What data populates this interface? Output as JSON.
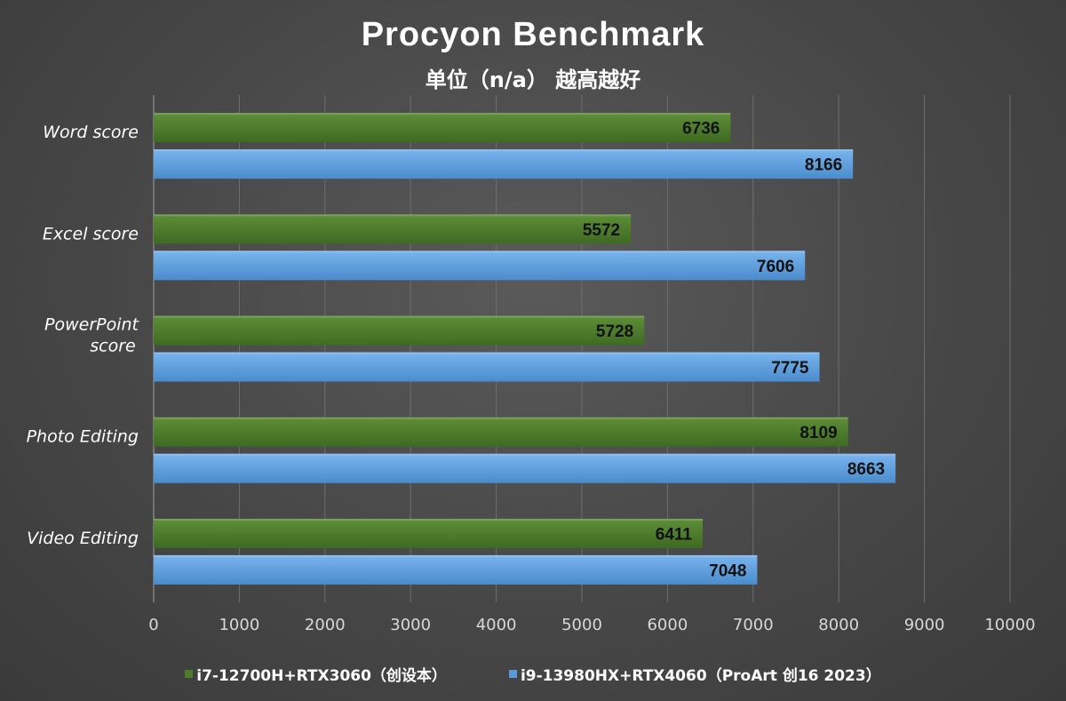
{
  "chart_data": {
    "type": "bar",
    "orientation": "horizontal",
    "title": "Procyon Benchmark",
    "subtitle": "单位（n/a） 越高越好",
    "categories": [
      "Word score",
      "Excel score",
      "PowerPoint score",
      "Photo Editing",
      "Video Editing"
    ],
    "category_lines": [
      [
        "Word score"
      ],
      [
        "Excel score"
      ],
      [
        "PowerPoint",
        "score"
      ],
      [
        "Photo Editing"
      ],
      [
        "Video Editing"
      ]
    ],
    "series": [
      {
        "name": "i7-12700H+RTX3060（创设本）",
        "color": "#4e7a2c",
        "values": [
          6736,
          5572,
          5728,
          8109,
          6411
        ]
      },
      {
        "name": "i9-13980HX+RTX4060（ProArt 创16 2023）",
        "color": "#5b9bd5",
        "values": [
          8166,
          7606,
          7775,
          8663,
          7048
        ]
      }
    ],
    "xlim": [
      0,
      10000
    ],
    "xticks": [
      0,
      1000,
      2000,
      3000,
      4000,
      5000,
      6000,
      7000,
      8000,
      9000,
      10000
    ],
    "grid": true,
    "legend_position": "bottom"
  }
}
